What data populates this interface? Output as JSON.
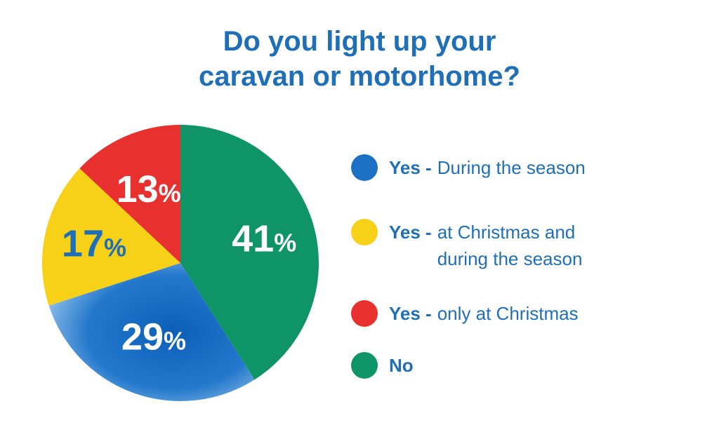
{
  "title": {
    "line1": "Do you light up your",
    "line2": "caravan or motorhome?"
  },
  "chart_data": {
    "type": "pie",
    "categories": [
      "Yes - During the season",
      "Yes - at Christmas and during the season",
      "Yes - only at Christmas",
      "No"
    ],
    "values": [
      29,
      17,
      13,
      41
    ],
    "labels": [
      "29",
      "17",
      "13",
      "41"
    ],
    "unit": "%",
    "colors": [
      "#1b6fc4",
      "#f7d117",
      "#e8302e",
      "#0e9466"
    ],
    "label_colors": [
      "#ffffff",
      "#1f6fb8",
      "#ffffff",
      "#ffffff"
    ],
    "legend_position": "right"
  },
  "legend": {
    "items": [
      {
        "strong": "Yes -",
        "rest_lines": [
          "During the season"
        ],
        "color": "#1b6fc4"
      },
      {
        "strong": "Yes -",
        "rest_lines": [
          "at Christmas and",
          "during the season"
        ],
        "color": "#f7d117"
      },
      {
        "strong": "Yes -",
        "rest_lines": [
          "only at Christmas"
        ],
        "color": "#e8302e"
      },
      {
        "strong": "No",
        "rest_lines": [],
        "color": "#0e9466"
      }
    ]
  }
}
